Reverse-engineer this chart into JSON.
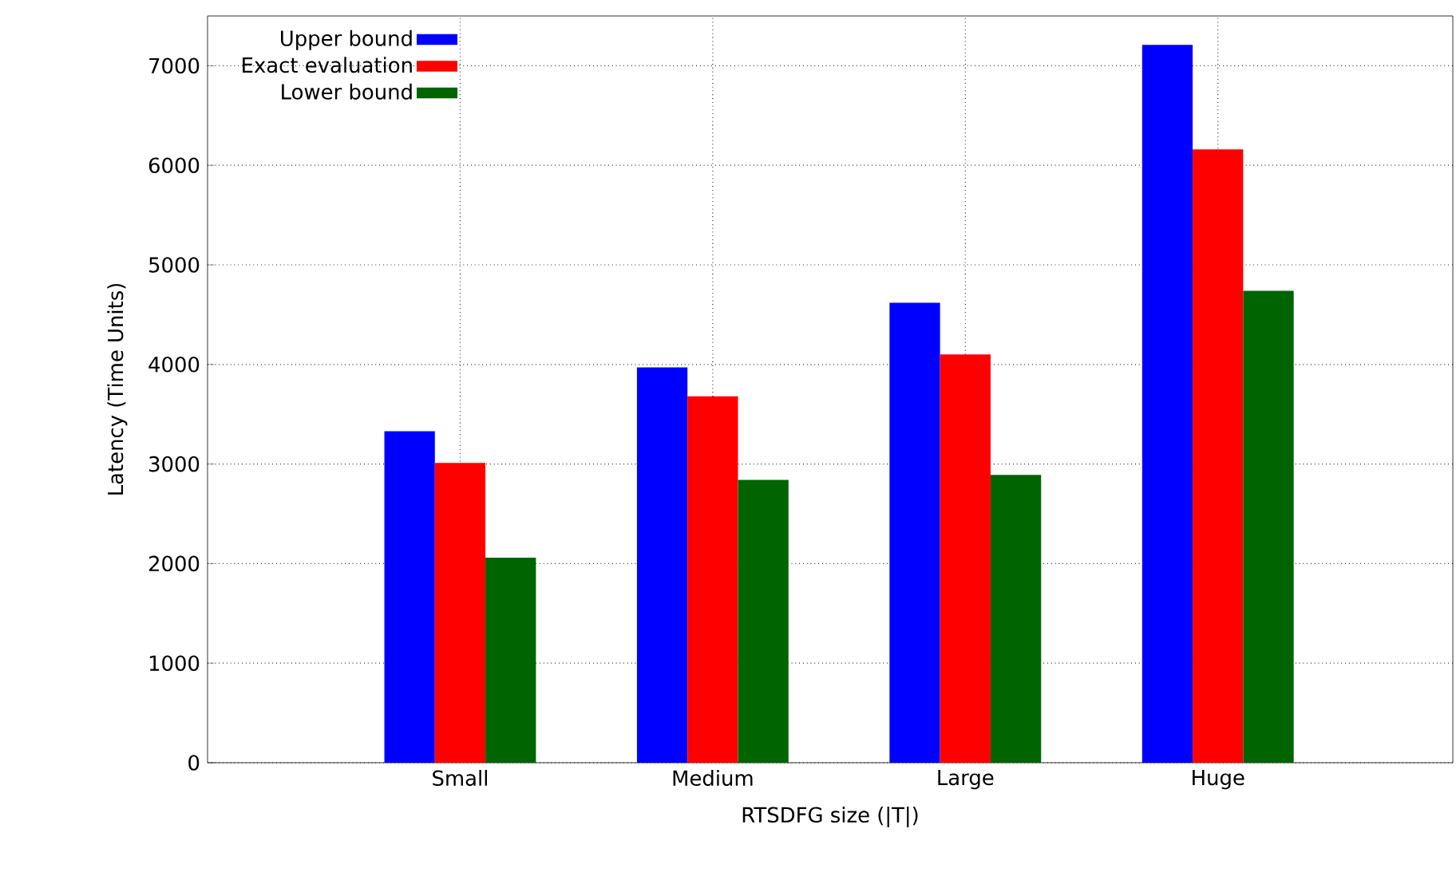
{
  "chart_data": {
    "type": "bar",
    "xlabel": "RTSDFG size (|T|)",
    "ylabel": "Latency (Time Units)",
    "categories": [
      "Small",
      "Medium",
      "Large",
      "Huge"
    ],
    "series": [
      {
        "name": "Upper bound",
        "color": "#0000ff",
        "values": [
          3330,
          3970,
          4620,
          7210
        ]
      },
      {
        "name": "Exact evaluation",
        "color": "#ff0000",
        "values": [
          3010,
          3680,
          4100,
          6160
        ]
      },
      {
        "name": "Lower bound",
        "color": "#006400",
        "values": [
          2060,
          2840,
          2890,
          4740
        ]
      }
    ],
    "ylim": [
      0,
      7500
    ],
    "yticks": [
      0,
      1000,
      2000,
      3000,
      4000,
      5000,
      6000,
      7000
    ],
    "grid": true,
    "legend": "top left"
  }
}
